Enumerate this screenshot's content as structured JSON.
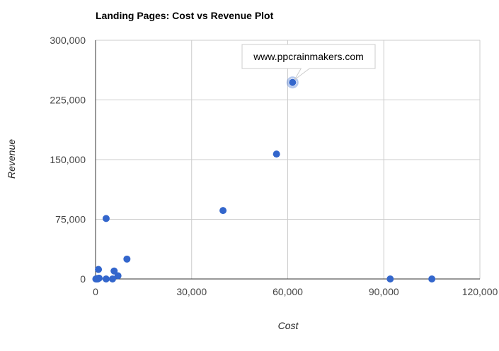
{
  "chart_data": {
    "type": "scatter",
    "title": "Landing Pages: Cost vs Revenue Plot",
    "xlabel": "Cost",
    "ylabel": "Revenue",
    "xlim": [
      0,
      120000
    ],
    "ylim": [
      0,
      300000
    ],
    "x_ticks": [
      0,
      30000,
      60000,
      90000,
      120000
    ],
    "y_ticks": [
      0,
      75000,
      150000,
      225000,
      300000
    ],
    "x_tick_labels": [
      "0",
      "30,000",
      "60,000",
      "90,000",
      "120,000"
    ],
    "y_tick_labels": [
      "0",
      "75,000",
      "150,000",
      "225,000",
      "300,000"
    ],
    "grid": true,
    "legend": "none",
    "point_color": "#3366cc",
    "points": [
      {
        "x": 100,
        "y": 0
      },
      {
        "x": 300,
        "y": 0
      },
      {
        "x": 500,
        "y": 500
      },
      {
        "x": 700,
        "y": 0
      },
      {
        "x": 900,
        "y": 12000
      },
      {
        "x": 1100,
        "y": 1000
      },
      {
        "x": 3300,
        "y": 0
      },
      {
        "x": 3300,
        "y": 76000
      },
      {
        "x": 5300,
        "y": 0
      },
      {
        "x": 5800,
        "y": 10000
      },
      {
        "x": 7000,
        "y": 4000
      },
      {
        "x": 9800,
        "y": 25000
      },
      {
        "x": 39800,
        "y": 86000
      },
      {
        "x": 56500,
        "y": 157000
      },
      {
        "x": 61500,
        "y": 247000
      },
      {
        "x": 92000,
        "y": 0
      },
      {
        "x": 105000,
        "y": 0
      }
    ],
    "tooltip": {
      "text": "www.ppcrainmakers.com",
      "point_x": 61500,
      "point_y": 247000
    }
  }
}
